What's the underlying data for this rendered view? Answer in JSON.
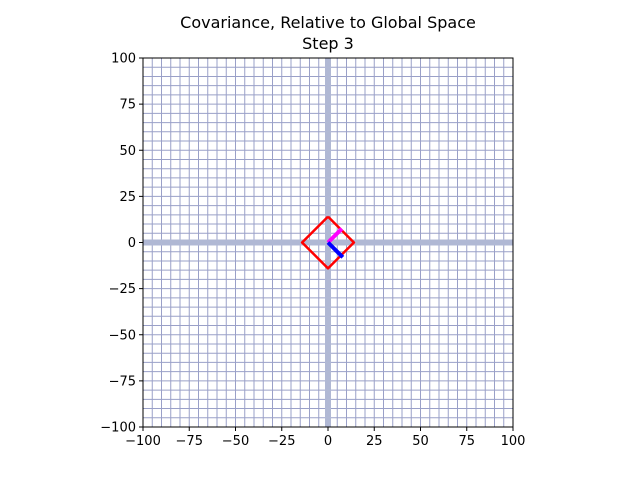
{
  "chart_data": {
    "type": "line",
    "title": "Covariance, Relative to Global Space",
    "subtitle": "Step 3",
    "xlabel": "",
    "ylabel": "",
    "xlim": [
      -100,
      100
    ],
    "ylim": [
      -100,
      100
    ],
    "xticks": [
      -100,
      -75,
      -50,
      -25,
      0,
      25,
      50,
      75,
      100
    ],
    "yticks": [
      -100,
      -75,
      -50,
      -25,
      0,
      25,
      50,
      75,
      100
    ],
    "xtick_labels": [
      "−100",
      "−75",
      "−50",
      "−25",
      "0",
      "25",
      "50",
      "75",
      "100"
    ],
    "ytick_labels": [
      "−100",
      "−75",
      "−50",
      "−25",
      "0",
      "25",
      "50",
      "75",
      "100"
    ],
    "grid": true,
    "grid_step": 5,
    "series": [
      {
        "color": "#ff0000",
        "x": [
          0,
          14,
          0,
          -14,
          0
        ],
        "y": [
          14,
          0,
          -14,
          0,
          14
        ]
      },
      {
        "color": "#ff00ff",
        "x": [
          0,
          7.5
        ],
        "y": [
          0,
          7.5
        ]
      },
      {
        "color": "#0000ff",
        "x": [
          0,
          8
        ],
        "y": [
          0,
          -8
        ]
      }
    ],
    "colors": {
      "grid": "#9aa0c8",
      "axis_lines": "#b0b8d4",
      "shape": "#ff0000",
      "vector_1": "#ff00ff",
      "vector_2": "#0000ff"
    }
  }
}
